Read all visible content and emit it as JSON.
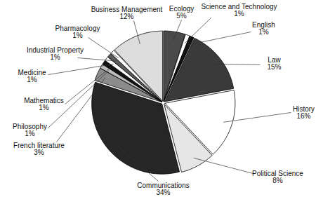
{
  "chart_data": {
    "type": "pie",
    "categories": [
      "Ecology",
      "Science and Technology",
      "English",
      "Law",
      "History",
      "Political Science",
      "Communications",
      "French literature",
      "Philosophy",
      "Mathematics",
      "Medicine",
      "Industrial Property",
      "Pharmacology",
      "Business Management"
    ],
    "values": [
      5,
      1,
      1,
      15,
      16,
      8,
      34,
      3,
      1,
      1,
      1,
      1,
      1,
      12
    ],
    "value_labels": [
      "5%",
      "1%",
      "1%",
      "15%",
      "16%",
      "8%",
      "34%",
      "3%",
      "1%",
      "1%",
      "1%",
      "1%",
      "1%",
      "12%"
    ],
    "colors": [
      "#4a4a4a",
      "#ffffff",
      "#111111",
      "#3a3a3a",
      "#ffffff",
      "#e6e6e6",
      "#262626",
      "#8c8c8c",
      "#bdbdbd",
      "#111111",
      "#ffffff",
      "#5a5a5a",
      "#ffffff",
      "#dddddd"
    ],
    "data_labels": true
  }
}
